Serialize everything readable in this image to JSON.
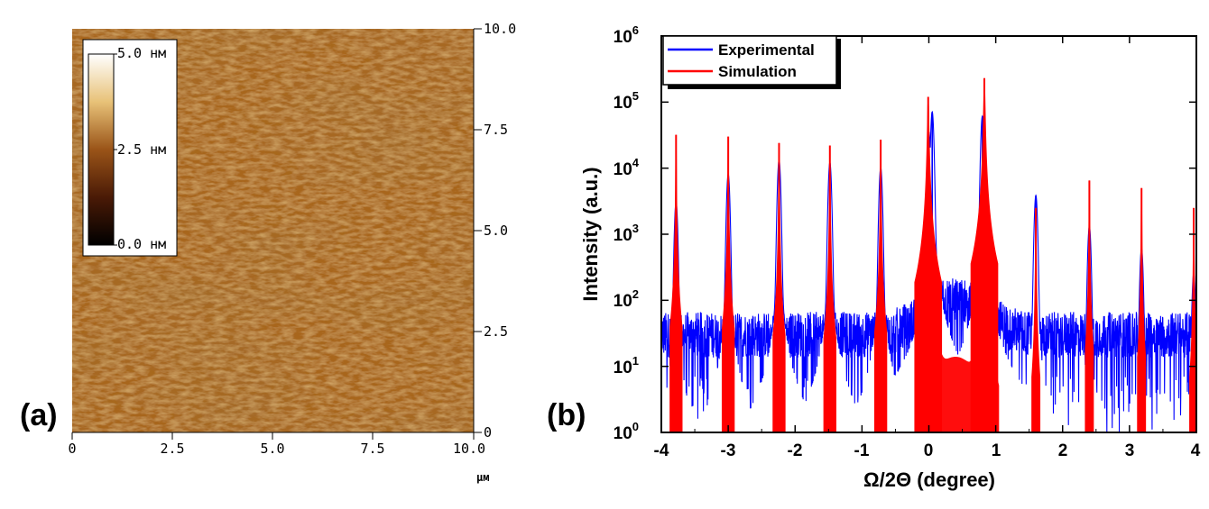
{
  "panel_a": {
    "label": "(a)",
    "x_ticks": [
      "0",
      "2.5",
      "5.0",
      "7.5",
      "10.0"
    ],
    "y_ticks": [
      "0",
      "2.5",
      "5.0",
      "7.5",
      "10.0"
    ],
    "unit": "µм",
    "colorbar": {
      "top": "5.0 нм",
      "mid": "2.5 нм",
      "bottom": "0.0 нм"
    },
    "colors": {
      "image_base": "#A8661E",
      "dark": "#5A2A0A",
      "light": "#C88A34"
    }
  },
  "panel_b": {
    "label": "(b)",
    "xlabel": "Ω/2Θ (degree)",
    "ylabel": "Intensity (a.u.)",
    "y_tick_base": "10",
    "y_tick_exps": [
      "0",
      "1",
      "2",
      "3",
      "4",
      "5",
      "6"
    ],
    "x_ticks": [
      "-4",
      "-3",
      "-2",
      "-1",
      "0",
      "1",
      "2",
      "3",
      "4"
    ],
    "legend": {
      "experimental": "Experimental",
      "simulation": "Simulation"
    },
    "colors": {
      "experimental": "#0000FF",
      "simulation": "#FF0000"
    }
  },
  "chart_data": {
    "type": "line",
    "xlim": [
      -4,
      4
    ],
    "ylim": [
      1,
      1000000
    ],
    "yscale": "log",
    "grid": false,
    "legend_position": "top-left",
    "xlabel": "Ω/2Θ (degree)",
    "ylabel": "Intensity (a.u.)",
    "series": [
      {
        "name": "Experimental",
        "color": "#0000FF",
        "background_level": 30,
        "peaks": [
          {
            "x": -3.78,
            "y": 3000
          },
          {
            "x": -3.0,
            "y": 8000
          },
          {
            "x": -2.24,
            "y": 13000
          },
          {
            "x": -1.48,
            "y": 12000
          },
          {
            "x": -0.72,
            "y": 10000
          },
          {
            "x": 0.0,
            "y": 35000
          },
          {
            "x": 0.05,
            "y": 70000
          },
          {
            "x": 0.8,
            "y": 60000
          },
          {
            "x": 1.6,
            "y": 3800
          },
          {
            "x": 2.4,
            "y": 1300
          },
          {
            "x": 3.18,
            "y": 600
          },
          {
            "x": 3.96,
            "y": 250
          }
        ]
      },
      {
        "name": "Simulation",
        "color": "#FF0000",
        "peaks": [
          {
            "x": -3.78,
            "y": 32000
          },
          {
            "x": -3.0,
            "y": 30000
          },
          {
            "x": -2.24,
            "y": 24000
          },
          {
            "x": -1.48,
            "y": 22000
          },
          {
            "x": -0.72,
            "y": 27000
          },
          {
            "x": -0.01,
            "y": 120000
          },
          {
            "x": 0.83,
            "y": 230000
          },
          {
            "x": 1.6,
            "y": 2500
          },
          {
            "x": 2.4,
            "y": 6500
          },
          {
            "x": 3.18,
            "y": 5000
          },
          {
            "x": 3.96,
            "y": 2500
          }
        ]
      }
    ]
  }
}
